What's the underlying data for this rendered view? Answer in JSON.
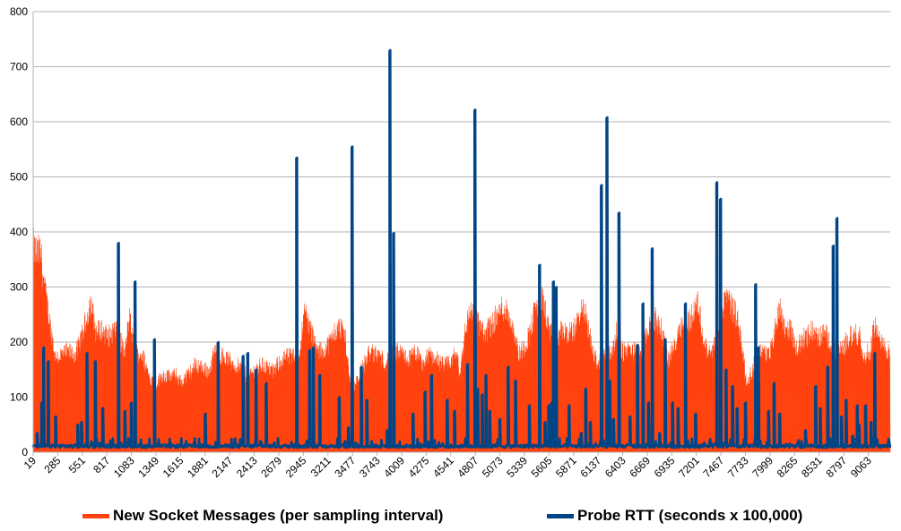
{
  "colors": {
    "messages": "#ff420e",
    "rtt": "#004586",
    "grid": "#b3b3b3"
  },
  "chart_data": {
    "type": "line",
    "title": "",
    "xlabel": "",
    "ylabel": "",
    "ylim": [
      0,
      800
    ],
    "y_ticks": [
      "0",
      "100",
      "200",
      "300",
      "400",
      "500",
      "600",
      "700",
      "800"
    ],
    "x_range": [
      19,
      9300
    ],
    "x_ticks": [
      "19",
      "285",
      "551",
      "817",
      "1083",
      "1349",
      "1615",
      "1881",
      "2147",
      "2413",
      "2679",
      "2945",
      "3211",
      "3477",
      "3743",
      "4009",
      "4275",
      "4541",
      "4807",
      "5073",
      "5339",
      "5605",
      "5871",
      "6137",
      "6403",
      "6669",
      "6935",
      "7201",
      "7467",
      "7733",
      "7999",
      "8265",
      "8531",
      "8797",
      "9063"
    ],
    "grid": true,
    "legend_position": "bottom",
    "series": [
      {
        "name": "New Socket Messages (per sampling interval)",
        "color": "#ff420e",
        "style": "area",
        "baseline": 8,
        "envelope": [
          [
            19,
            410
          ],
          [
            60,
            395
          ],
          [
            100,
            400
          ],
          [
            150,
            320
          ],
          [
            200,
            260
          ],
          [
            260,
            190
          ],
          [
            330,
            195
          ],
          [
            400,
            200
          ],
          [
            480,
            195
          ],
          [
            560,
            240
          ],
          [
            640,
            300
          ],
          [
            700,
            240
          ],
          [
            760,
            245
          ],
          [
            830,
            230
          ],
          [
            900,
            245
          ],
          [
            950,
            230
          ],
          [
            1010,
            195
          ],
          [
            1060,
            270
          ],
          [
            1120,
            200
          ],
          [
            1200,
            195
          ],
          [
            1280,
            150
          ],
          [
            1350,
            135
          ],
          [
            1420,
            155
          ],
          [
            1500,
            150
          ],
          [
            1560,
            155
          ],
          [
            1620,
            140
          ],
          [
            1700,
            155
          ],
          [
            1780,
            175
          ],
          [
            1850,
            170
          ],
          [
            1920,
            160
          ],
          [
            1990,
            205
          ],
          [
            2050,
            195
          ],
          [
            2130,
            185
          ],
          [
            2200,
            175
          ],
          [
            2260,
            170
          ],
          [
            2340,
            150
          ],
          [
            2420,
            165
          ],
          [
            2500,
            175
          ],
          [
            2560,
            170
          ],
          [
            2620,
            160
          ],
          [
            2700,
            185
          ],
          [
            2760,
            190
          ],
          [
            2830,
            190
          ],
          [
            2900,
            195
          ],
          [
            2960,
            285
          ],
          [
            3030,
            240
          ],
          [
            3100,
            200
          ],
          [
            3170,
            205
          ],
          [
            3230,
            220
          ],
          [
            3300,
            245
          ],
          [
            3360,
            250
          ],
          [
            3400,
            230
          ],
          [
            3460,
            120
          ],
          [
            3540,
            150
          ],
          [
            3600,
            175
          ],
          [
            3660,
            200
          ],
          [
            3700,
            195
          ],
          [
            3760,
            195
          ],
          [
            3830,
            180
          ],
          [
            3880,
            190
          ],
          [
            3950,
            200
          ],
          [
            4020,
            195
          ],
          [
            4080,
            185
          ],
          [
            4160,
            200
          ],
          [
            4240,
            175
          ],
          [
            4300,
            195
          ],
          [
            4380,
            190
          ],
          [
            4440,
            175
          ],
          [
            4520,
            175
          ],
          [
            4600,
            200
          ],
          [
            4640,
            155
          ],
          [
            4700,
            250
          ],
          [
            4760,
            285
          ],
          [
            4820,
            270
          ],
          [
            4900,
            235
          ],
          [
            4960,
            250
          ],
          [
            5040,
            270
          ],
          [
            5100,
            290
          ],
          [
            5160,
            280
          ],
          [
            5220,
            250
          ],
          [
            5280,
            195
          ],
          [
            5340,
            210
          ],
          [
            5400,
            240
          ],
          [
            5460,
            290
          ],
          [
            5540,
            305
          ],
          [
            5600,
            250
          ],
          [
            5680,
            215
          ],
          [
            5740,
            245
          ],
          [
            5820,
            235
          ],
          [
            5880,
            245
          ],
          [
            5950,
            285
          ],
          [
            6010,
            270
          ],
          [
            6080,
            200
          ],
          [
            6140,
            175
          ],
          [
            6200,
            195
          ],
          [
            6280,
            200
          ],
          [
            6340,
            240
          ],
          [
            6400,
            200
          ],
          [
            6480,
            205
          ],
          [
            6550,
            200
          ],
          [
            6620,
            205
          ],
          [
            6690,
            250
          ],
          [
            6760,
            265
          ],
          [
            6830,
            240
          ],
          [
            6900,
            185
          ],
          [
            6960,
            210
          ],
          [
            7020,
            255
          ],
          [
            7080,
            255
          ],
          [
            7150,
            270
          ],
          [
            7220,
            300
          ],
          [
            7280,
            220
          ],
          [
            7340,
            195
          ],
          [
            7400,
            215
          ],
          [
            7460,
            250
          ],
          [
            7520,
            310
          ],
          [
            7560,
            300
          ],
          [
            7620,
            280
          ],
          [
            7680,
            240
          ],
          [
            7740,
            140
          ],
          [
            7800,
            160
          ],
          [
            7860,
            200
          ],
          [
            7920,
            205
          ],
          [
            7980,
            190
          ],
          [
            8040,
            230
          ],
          [
            8100,
            295
          ],
          [
            8160,
            250
          ],
          [
            8220,
            245
          ],
          [
            8290,
            205
          ],
          [
            8340,
            225
          ],
          [
            8400,
            230
          ],
          [
            8460,
            245
          ],
          [
            8520,
            225
          ],
          [
            8580,
            240
          ],
          [
            8660,
            220
          ],
          [
            8720,
            200
          ],
          [
            8780,
            205
          ],
          [
            8840,
            225
          ],
          [
            8900,
            235
          ],
          [
            8960,
            235
          ],
          [
            9020,
            195
          ],
          [
            9080,
            200
          ],
          [
            9120,
            255
          ],
          [
            9200,
            215
          ],
          [
            9300,
            200
          ]
        ]
      },
      {
        "name": "Probe RTT (seconds x 100,000)",
        "color": "#004586",
        "style": "line",
        "baseline": 12,
        "spikes": [
          [
            60,
            35
          ],
          [
            110,
            90
          ],
          [
            130,
            190
          ],
          [
            180,
            165
          ],
          [
            260,
            65
          ],
          [
            500,
            50
          ],
          [
            540,
            55
          ],
          [
            600,
            180
          ],
          [
            690,
            165
          ],
          [
            770,
            80
          ],
          [
            940,
            380
          ],
          [
            1010,
            75
          ],
          [
            1080,
            90
          ],
          [
            1120,
            310
          ],
          [
            1330,
            205
          ],
          [
            1880,
            70
          ],
          [
            2020,
            200
          ],
          [
            2200,
            25
          ],
          [
            2290,
            175
          ],
          [
            2340,
            180
          ],
          [
            2430,
            150
          ],
          [
            2540,
            125
          ],
          [
            2870,
            535
          ],
          [
            3010,
            185
          ],
          [
            3050,
            190
          ],
          [
            3120,
            140
          ],
          [
            3330,
            100
          ],
          [
            3430,
            45
          ],
          [
            3470,
            555
          ],
          [
            3570,
            155
          ],
          [
            3630,
            95
          ],
          [
            3850,
            40
          ],
          [
            3880,
            730
          ],
          [
            3920,
            398
          ],
          [
            4130,
            70
          ],
          [
            4260,
            110
          ],
          [
            4330,
            140
          ],
          [
            4500,
            95
          ],
          [
            4580,
            75
          ],
          [
            4720,
            160
          ],
          [
            4800,
            622
          ],
          [
            4830,
            115
          ],
          [
            4880,
            105
          ],
          [
            4920,
            140
          ],
          [
            4960,
            75
          ],
          [
            5070,
            60
          ],
          [
            5160,
            155
          ],
          [
            5240,
            130
          ],
          [
            5390,
            85
          ],
          [
            5500,
            340
          ],
          [
            5560,
            55
          ],
          [
            5600,
            85
          ],
          [
            5630,
            90
          ],
          [
            5650,
            310
          ],
          [
            5680,
            300
          ],
          [
            5820,
            85
          ],
          [
            5950,
            35
          ],
          [
            6000,
            115
          ],
          [
            6050,
            55
          ],
          [
            6170,
            485
          ],
          [
            6230,
            608
          ],
          [
            6260,
            130
          ],
          [
            6300,
            60
          ],
          [
            6360,
            435
          ],
          [
            6480,
            65
          ],
          [
            6560,
            195
          ],
          [
            6620,
            270
          ],
          [
            6680,
            90
          ],
          [
            6720,
            370
          ],
          [
            6800,
            35
          ],
          [
            6860,
            205
          ],
          [
            6940,
            90
          ],
          [
            7000,
            80
          ],
          [
            7080,
            270
          ],
          [
            7190,
            70
          ],
          [
            7420,
            490
          ],
          [
            7460,
            460
          ],
          [
            7520,
            150
          ],
          [
            7590,
            120
          ],
          [
            7640,
            80
          ],
          [
            7730,
            90
          ],
          [
            7840,
            305
          ],
          [
            7870,
            190
          ],
          [
            7980,
            75
          ],
          [
            8040,
            125
          ],
          [
            8100,
            70
          ],
          [
            8380,
            40
          ],
          [
            8490,
            120
          ],
          [
            8540,
            80
          ],
          [
            8620,
            155
          ],
          [
            8680,
            375
          ],
          [
            8720,
            425
          ],
          [
            8770,
            65
          ],
          [
            8820,
            95
          ],
          [
            8890,
            30
          ],
          [
            8940,
            85
          ],
          [
            8960,
            50
          ],
          [
            9030,
            85
          ],
          [
            9090,
            55
          ],
          [
            9130,
            180
          ]
        ]
      }
    ]
  }
}
